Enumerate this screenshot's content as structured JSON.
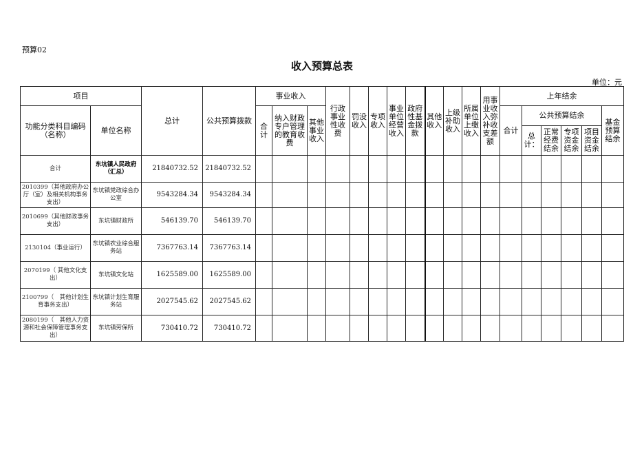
{
  "form_code": "预算02",
  "title": "收入预算总表",
  "unit": "单位：元",
  "header": {
    "item": "项目",
    "func_code": "功能分类科目编码（名称）",
    "unit_name": "单位名称",
    "total": "总计",
    "public_budget": "公共预算拨款",
    "business_income": "事业收入",
    "bi_total": "合计",
    "bi_edu": "纳入财政专户管理的教育收费",
    "bi_other": "其他事业收入",
    "admin_fee": "行政事业性收费",
    "fines": "罚没收入",
    "special": "专项收入",
    "operation": "事业单位经营收入",
    "gov_fund": "政府性基金拨款",
    "other": "其他收入",
    "superior": "上级补助收入",
    "subordinate": "所属单位上缴收入",
    "offset": "用事业收入弥补收支差额",
    "last_year": "上年结余",
    "ly_total": "合计",
    "ly_public": "公共预算结余",
    "ly_pub_total": "总计：",
    "ly_normal": "正常经费结余",
    "ly_special": "专项资金结余",
    "ly_project": "项目资金结余",
    "ly_fund": "基金预算结余"
  },
  "rows": [
    {
      "code": "合计",
      "unit": "东坑镇人民政府（汇总）",
      "total": "21840732.52",
      "public": "21840732.52",
      "bold": true
    },
    {
      "code": "2010399（其他政府办公厅（室）及相关机构事务支出）",
      "unit": "东坑镇党政综合办公室",
      "total": "9543284.34",
      "public": "9543284.34"
    },
    {
      "code": "2010699（其他财政事务支出）",
      "unit": "东坑镇财政所",
      "total": "546139.70",
      "public": "546139.70"
    },
    {
      "code": "2130104（事业运行）",
      "unit": "东坑镇农业综合服务站",
      "total": "7367763.14",
      "public": "7367763.14"
    },
    {
      "code": "2070199（ 其他文化支出）",
      "unit": "东坑镇文化站",
      "total": "1625589.00",
      "public": "1625589.00"
    },
    {
      "code": "2100799（　其他计划生育事务支出）",
      "unit": "东坑镇计划生育服务站",
      "total": "2027545.62",
      "public": "2027545.62"
    },
    {
      "code": "2080199（　其他人力资源和社会保障管理事务支出）",
      "unit": "东坑镇劳保所",
      "total": "730410.72",
      "public": "730410.72"
    }
  ]
}
